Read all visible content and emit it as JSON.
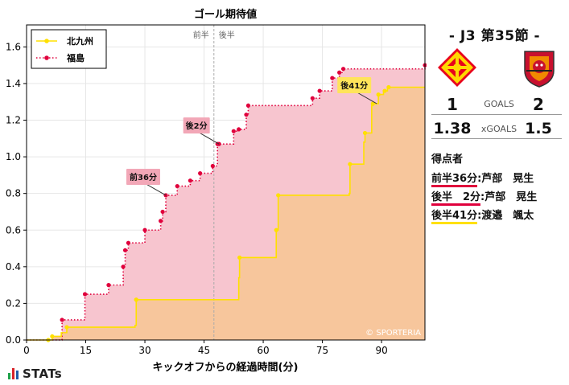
{
  "chart_data": {
    "type": "area",
    "title": "ゴール期待値",
    "xlabel": "キックオフからの経過時間(分)",
    "ylabel": "",
    "xlim": [
      0,
      101
    ],
    "ylim": [
      0,
      1.72
    ],
    "xticks": [
      0,
      15,
      30,
      45,
      60,
      75,
      90
    ],
    "yticks": [
      0.0,
      0.2,
      0.4,
      0.6,
      0.8,
      1.0,
      1.2,
      1.4,
      1.6
    ],
    "ytick_labels": [
      "0.0",
      "0.2",
      "0.4",
      "0.6",
      "0.8",
      "1.0",
      "1.2",
      "1.4",
      "1.6"
    ],
    "grid": true,
    "legend_position": "top-left",
    "half_labels": [
      "前半",
      "後半"
    ],
    "half_time_x": 47.5,
    "watermark": "© SPORTERIA",
    "series": [
      {
        "name": "北九州",
        "color": "#FFE000",
        "fill": "#F7C69C",
        "line": "solid",
        "x": [
          0,
          5.5,
          6.5,
          8.8,
          10.2,
          27.5,
          27.8,
          53.8,
          54.0,
          63.3,
          63.8,
          81.8,
          82.0,
          85.5,
          85.8,
          87.5,
          87.8,
          88.8,
          89.2,
          90.5,
          90.8,
          91.5,
          91.8,
          101
        ],
        "y": [
          0,
          0,
          0.02,
          0.04,
          0.07,
          0.08,
          0.22,
          0.34,
          0.45,
          0.6,
          0.79,
          0.8,
          0.96,
          1.08,
          1.13,
          1.28,
          1.29,
          1.29,
          1.34,
          1.36,
          1.36,
          1.38,
          1.38,
          1.38
        ],
        "markers_x": [
          5.5,
          6.5,
          10.2,
          27.8,
          27.8,
          54.0,
          63.3,
          63.8,
          82.0,
          85.8,
          87.8,
          89.2,
          90.8,
          91.8
        ]
      },
      {
        "name": "福島",
        "color": "#E0003C",
        "fill": "#F7C5CF",
        "line": "dotted",
        "x": [
          0,
          8.5,
          9.0,
          14.8,
          20.8,
          24.5,
          25.0,
          25.8,
          30.0,
          34.0,
          34.5,
          35.3,
          38.2,
          41.5,
          44.0,
          47.2,
          48.4,
          48.8,
          52.5,
          53.8,
          55.7,
          56.2,
          72.5,
          74.3,
          77.5,
          79.3,
          80.3,
          101
        ],
        "y": [
          0,
          0,
          0.11,
          0.25,
          0.3,
          0.4,
          0.49,
          0.53,
          0.6,
          0.65,
          0.7,
          0.79,
          0.84,
          0.87,
          0.91,
          0.95,
          1.07,
          1.07,
          1.14,
          1.15,
          1.23,
          1.28,
          1.32,
          1.36,
          1.43,
          1.46,
          1.48,
          1.5
        ],
        "markers_x": [
          9.0,
          14.8,
          20.8,
          24.5,
          25.0,
          25.8,
          30.0,
          34.0,
          34.5,
          35.3,
          38.2,
          41.5,
          44.0,
          47.2,
          48.4,
          48.8,
          52.5,
          53.8,
          55.7,
          56.2,
          72.5,
          74.3,
          77.5,
          79.3,
          80.3,
          101
        ]
      }
    ],
    "annotations": [
      {
        "text": "前36分",
        "x": 35.3,
        "y": 0.79,
        "color": "#F2A7B7"
      },
      {
        "text": "後2分",
        "x": 48.8,
        "y": 1.07,
        "color": "#F2A7B7"
      },
      {
        "text": "後41分",
        "x": 88.8,
        "y": 1.29,
        "color": "#FFE45A"
      }
    ]
  },
  "match": {
    "title": "-  J3 第35節  -",
    "home": {
      "name": "北九州",
      "goals": "1",
      "xgoals": "1.38",
      "color": "#FFE000"
    },
    "away": {
      "name": "福島",
      "goals": "2",
      "xgoals": "1.5",
      "color": "#E0003C"
    },
    "goals_label": "GOALS",
    "xgoals_label": "xGOALS",
    "scorers_title": "得点者",
    "scorers": [
      {
        "time": "前半36分",
        "player": "芦部　晃生",
        "color": "#E0003C"
      },
      {
        "time": "後半　2分",
        "player": "芦部　晃生",
        "color": "#E0003C"
      },
      {
        "time": "後半41分",
        "player": "渡邉　颯太",
        "color": "#FFE000"
      }
    ]
  },
  "brand": {
    "name": "STATs"
  }
}
